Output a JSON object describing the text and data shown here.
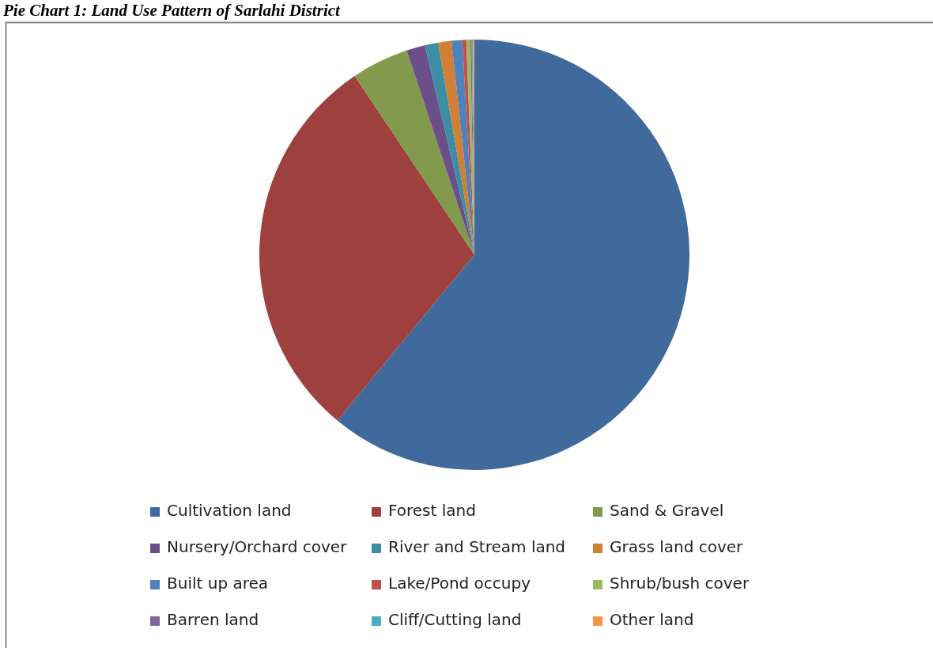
{
  "chart_data": {
    "type": "pie",
    "title": "Pie Chart 1: Land Use Pattern of Sarlahi District",
    "categories": [
      "Cultivation land",
      "Forest land",
      "Sand & Gravel",
      "Nursery/Orchard cover",
      "River and Stream land",
      "Grass land cover",
      "Built up area",
      "Lake/Pond occupy",
      "Shrub/bush cover",
      "Barren land",
      "Cliff/Cutting land",
      "Other land"
    ],
    "values": [
      61.0,
      29.6,
      4.3,
      1.4,
      1.0,
      1.0,
      0.8,
      0.3,
      0.3,
      0.1,
      0.1,
      0.1
    ],
    "colors": [
      "#416a9c",
      "#9e413e",
      "#819a4b",
      "#6b4f88",
      "#3b8ea4",
      "#d07f33",
      "#4f81bd",
      "#c0504d",
      "#9bbb59",
      "#8064a2",
      "#4bacc6",
      "#f79646"
    ],
    "legend": "bottom"
  }
}
